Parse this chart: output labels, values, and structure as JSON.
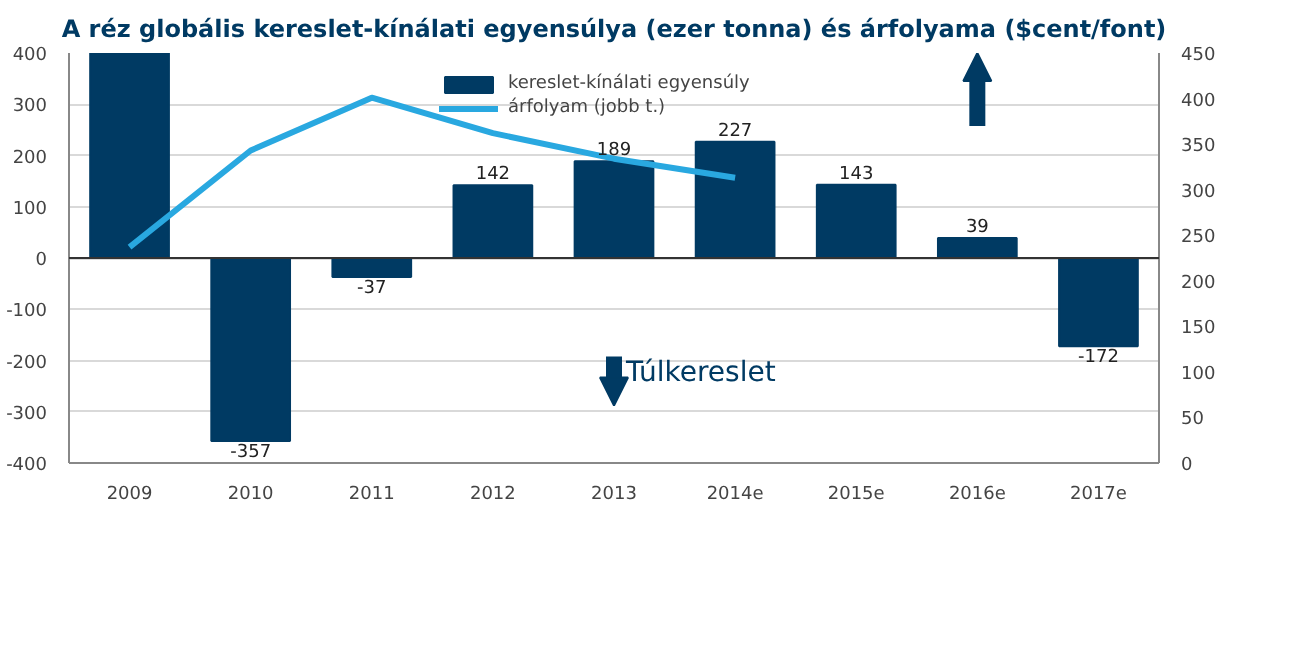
{
  "chart_data": {
    "type": "bar",
    "title": "A réz globális kereslet-kínálati egyensúlya (ezer tonna) és árfolyama ($cent/font)",
    "categories": [
      "2009",
      "2010",
      "2011",
      "2012",
      "2013",
      "2014e",
      "2015e",
      "2016e",
      "2017e"
    ],
    "series": [
      {
        "name": "kereslet-kínálati egyensúly",
        "color": "#003a63",
        "values": [
          400,
          -357,
          -37,
          142,
          189,
          227,
          143,
          39,
          -172
        ],
        "value_labels": [
          null,
          "-357",
          "-37",
          "142",
          "189",
          "227",
          "143",
          "39",
          "-172"
        ]
      },
      {
        "name": "árfolyam (jobb t.)",
        "type": "line",
        "axis": "y2",
        "color": "#29a8e0",
        "values": [
          237,
          343,
          401,
          362,
          334,
          313,
          null,
          null,
          null
        ]
      }
    ],
    "ylim": [
      -400,
      400
    ],
    "yticks": [
      -400,
      -300,
      -200,
      -100,
      0,
      100,
      200,
      300,
      400
    ],
    "y2lim": [
      0,
      450
    ],
    "y2ticks": [
      0,
      50,
      100,
      150,
      200,
      250,
      300,
      350,
      400,
      450
    ],
    "annotations": [
      "Túlkereslet"
    ],
    "grid": "y",
    "legend": "top",
    "line_style": "solid",
    "marker": "none"
  }
}
